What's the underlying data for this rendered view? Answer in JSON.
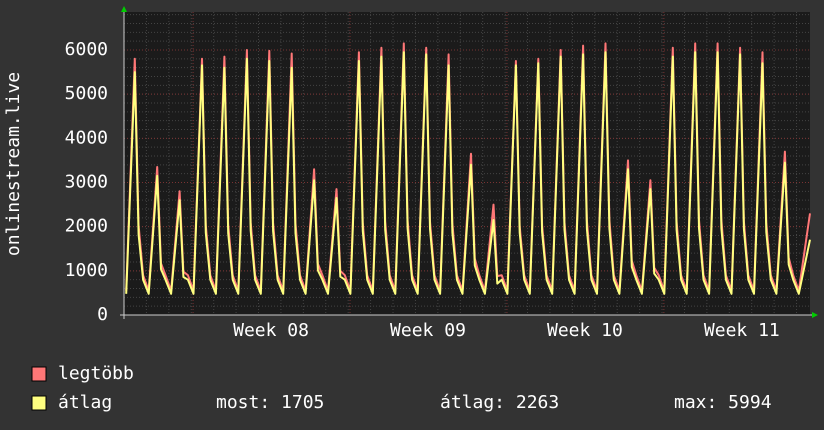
{
  "chart_data": {
    "type": "line",
    "y_label": "onlinestream.live",
    "x": [
      0.1,
      0.48,
      0.65,
      0.85,
      1.1,
      1.48,
      1.65,
      1.85,
      2.1,
      2.48,
      2.65,
      2.85,
      3.1,
      3.48,
      3.65,
      3.85,
      4.1,
      4.48,
      4.65,
      4.85,
      5.1,
      5.48,
      5.65,
      5.85,
      6.1,
      6.48,
      6.65,
      6.85,
      7.1,
      7.48,
      7.65,
      7.85,
      8.1,
      8.48,
      8.65,
      8.85,
      9.1,
      9.48,
      9.65,
      9.85,
      10.1,
      10.48,
      10.65,
      10.85,
      11.1,
      11.48,
      11.65,
      11.85,
      12.1,
      12.48,
      12.65,
      12.85,
      13.1,
      13.48,
      13.65,
      13.85,
      14.1,
      14.48,
      14.65,
      14.85,
      15.1,
      15.48,
      15.65,
      15.85,
      16.1,
      16.48,
      16.65,
      16.85,
      17.1,
      17.48,
      17.65,
      17.85,
      18.1,
      18.48,
      18.65,
      18.85,
      19.1,
      19.48,
      19.65,
      19.85,
      20.1,
      20.48,
      20.65,
      20.85,
      21.1,
      21.48,
      21.65,
      21.85,
      22.1,
      22.48,
      22.65,
      22.85,
      23.1,
      23.48,
      23.65,
      23.85,
      24.1,
      24.48,
      24.65,
      24.85,
      25.1,
      25.48,
      25.65,
      25.85,
      26.1,
      26.48,
      26.65,
      26.85,
      27.1,
      27.48,
      27.65,
      27.85,
      28.1,
      28.48,
      28.65,
      28.85,
      29.1,
      29.48,
      29.65,
      29.85,
      30.1,
      30.6
    ],
    "series": [
      {
        "name": "legtöbb",
        "color": "#ff7777",
        "values": [
          550,
          5800,
          2030,
          900,
          550,
          3350,
          1170,
          900,
          550,
          2800,
          980,
          900,
          550,
          5800,
          2030,
          900,
          550,
          5850,
          2050,
          900,
          550,
          6000,
          2100,
          900,
          550,
          5980,
          2090,
          900,
          550,
          5920,
          2070,
          900,
          550,
          3300,
          1160,
          900,
          550,
          2850,
          1000,
          900,
          550,
          5950,
          2080,
          900,
          550,
          6050,
          2120,
          900,
          550,
          6150,
          2150,
          900,
          550,
          6050,
          2120,
          900,
          550,
          5900,
          2070,
          900,
          550,
          3650,
          1280,
          900,
          550,
          2500,
          880,
          900,
          550,
          5750,
          2010,
          900,
          550,
          5800,
          2030,
          900,
          550,
          6000,
          2100,
          900,
          550,
          6100,
          2140,
          900,
          550,
          6150,
          2150,
          900,
          550,
          3500,
          1230,
          900,
          550,
          3050,
          1070,
          900,
          550,
          6050,
          2120,
          900,
          550,
          6150,
          2150,
          900,
          550,
          6150,
          2150,
          900,
          550,
          6050,
          2120,
          900,
          550,
          5950,
          2080,
          900,
          550,
          3700,
          1300,
          900,
          550,
          2300
        ]
      },
      {
        "name": "átlag",
        "color": "#ffff80",
        "values": [
          480,
          5500,
          1820,
          800,
          480,
          3150,
          1040,
          800,
          480,
          2600,
          860,
          800,
          480,
          5650,
          1860,
          800,
          480,
          5600,
          1850,
          800,
          480,
          5800,
          1910,
          800,
          480,
          5750,
          1900,
          800,
          480,
          5600,
          1850,
          800,
          480,
          3050,
          1010,
          800,
          480,
          2650,
          870,
          800,
          480,
          5750,
          1900,
          800,
          480,
          5850,
          1930,
          800,
          480,
          5950,
          1960,
          800,
          480,
          5900,
          1950,
          800,
          480,
          5650,
          1860,
          800,
          480,
          3400,
          1120,
          800,
          480,
          2150,
          710,
          800,
          480,
          5650,
          1860,
          800,
          480,
          5700,
          1880,
          800,
          480,
          5850,
          1930,
          800,
          480,
          5900,
          1950,
          800,
          480,
          5950,
          1960,
          800,
          480,
          3300,
          1090,
          800,
          480,
          2850,
          940,
          800,
          480,
          5850,
          1930,
          800,
          480,
          5950,
          1960,
          800,
          480,
          5950,
          1960,
          800,
          480,
          5900,
          1950,
          800,
          480,
          5700,
          1880,
          800,
          480,
          3450,
          1140,
          800,
          480,
          1705
        ]
      }
    ],
    "xlim": [
      0,
      30.6
    ],
    "xticks": [
      {
        "value": 6.56,
        "label": "Week 08"
      },
      {
        "value": 13.56,
        "label": "Week 09"
      },
      {
        "value": 20.56,
        "label": "Week 10"
      },
      {
        "value": 27.56,
        "label": "Week 11"
      }
    ],
    "ylim": [
      0,
      6860
    ],
    "yticks": [
      0,
      1000,
      2000,
      3000,
      4000,
      5000,
      6000
    ],
    "grid": true,
    "stats": [
      "most: 1705",
      "átlag: 2263",
      "max: 5994"
    ]
  }
}
